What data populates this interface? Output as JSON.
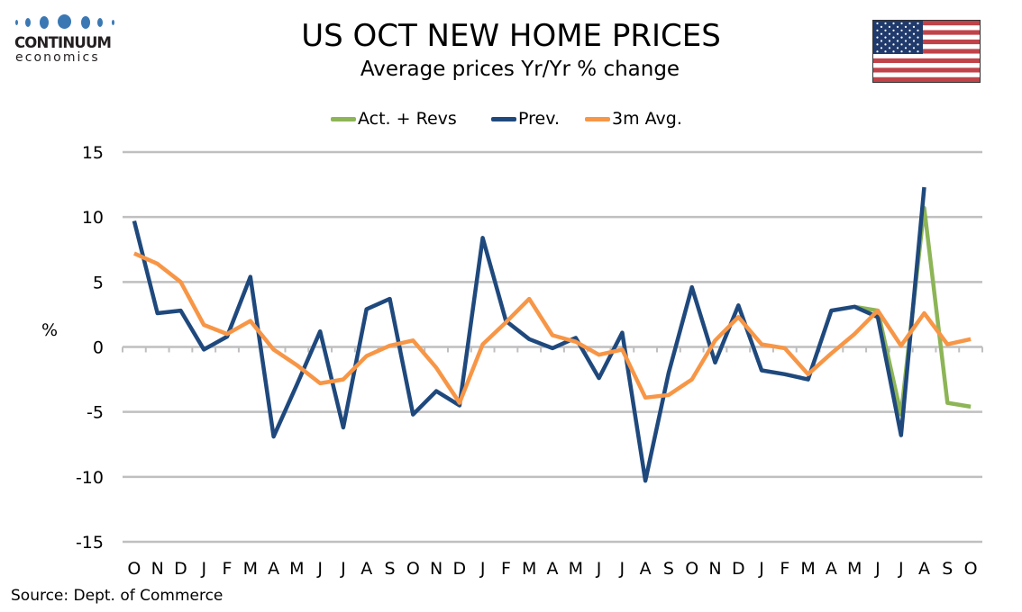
{
  "logo": {
    "line1": "CONTINUUM",
    "line2": "economics"
  },
  "header": {
    "title": "US OCT NEW HOME PRICES",
    "subtitle": "Average prices Yr/Yr % change",
    "flag_icon": "us-flag-icon"
  },
  "footer": {
    "source": "Source: Dept. of Commerce"
  },
  "colors": {
    "act_revs": "#8db557",
    "prev": "#1f497d",
    "avg3m": "#f79646",
    "grid": "#bfbfbf",
    "logo_blue": "#3a78b4",
    "flag_red": "#c0434a",
    "flag_blue": "#1f3a6b"
  },
  "chart_data": {
    "type": "line",
    "title": "US OCT NEW HOME PRICES",
    "subtitle": "Average prices Yr/Yr % change",
    "xlabel": "",
    "ylabel": "%",
    "ylim": [
      -15,
      15
    ],
    "yticks": [
      15,
      10,
      5,
      0,
      -5,
      -10,
      -15
    ],
    "grid": true,
    "legend_position": "top-center",
    "categories": [
      "O",
      "N",
      "D",
      "J",
      "F",
      "M",
      "A",
      "M",
      "J",
      "J",
      "A",
      "S",
      "O",
      "N",
      "D",
      "J",
      "F",
      "M",
      "A",
      "M",
      "J",
      "J",
      "A",
      "S",
      "O",
      "N",
      "D",
      "J",
      "F",
      "M",
      "A",
      "M",
      "J",
      "J",
      "A",
      "S",
      "O"
    ],
    "series": [
      {
        "name": "Act. + Revs",
        "color": "#8db557",
        "values": [
          null,
          null,
          null,
          null,
          null,
          null,
          null,
          null,
          null,
          null,
          null,
          null,
          null,
          null,
          null,
          null,
          null,
          null,
          null,
          null,
          null,
          null,
          null,
          null,
          null,
          null,
          null,
          null,
          null,
          null,
          null,
          3.1,
          2.8,
          -5.2,
          10.7,
          -4.3,
          -4.6
        ]
      },
      {
        "name": "Prev.",
        "color": "#1f497d",
        "values": [
          9.7,
          2.6,
          2.8,
          -0.2,
          0.8,
          5.4,
          -6.9,
          -2.9,
          1.2,
          -6.2,
          2.9,
          3.7,
          -5.2,
          -3.4,
          -4.5,
          8.4,
          2.0,
          0.6,
          -0.1,
          0.7,
          -2.4,
          1.1,
          -10.3,
          -2.0,
          4.6,
          -1.2,
          3.2,
          -1.8,
          -2.1,
          -2.5,
          2.8,
          3.1,
          2.3,
          -6.8,
          12.3,
          null,
          null
        ]
      },
      {
        "name": "3m Avg.",
        "color": "#f79646",
        "values": [
          7.2,
          6.4,
          5.0,
          1.7,
          1.0,
          2.0,
          -0.2,
          -1.4,
          -2.8,
          -2.5,
          -0.7,
          0.1,
          0.5,
          -1.6,
          -4.3,
          0.2,
          1.9,
          3.7,
          0.9,
          0.4,
          -0.6,
          -0.2,
          -3.9,
          -3.7,
          -2.5,
          0.5,
          2.3,
          0.2,
          -0.1,
          -2.1,
          -0.5,
          1.0,
          2.8,
          0.1,
          2.6,
          0.2,
          0.6
        ]
      }
    ]
  }
}
